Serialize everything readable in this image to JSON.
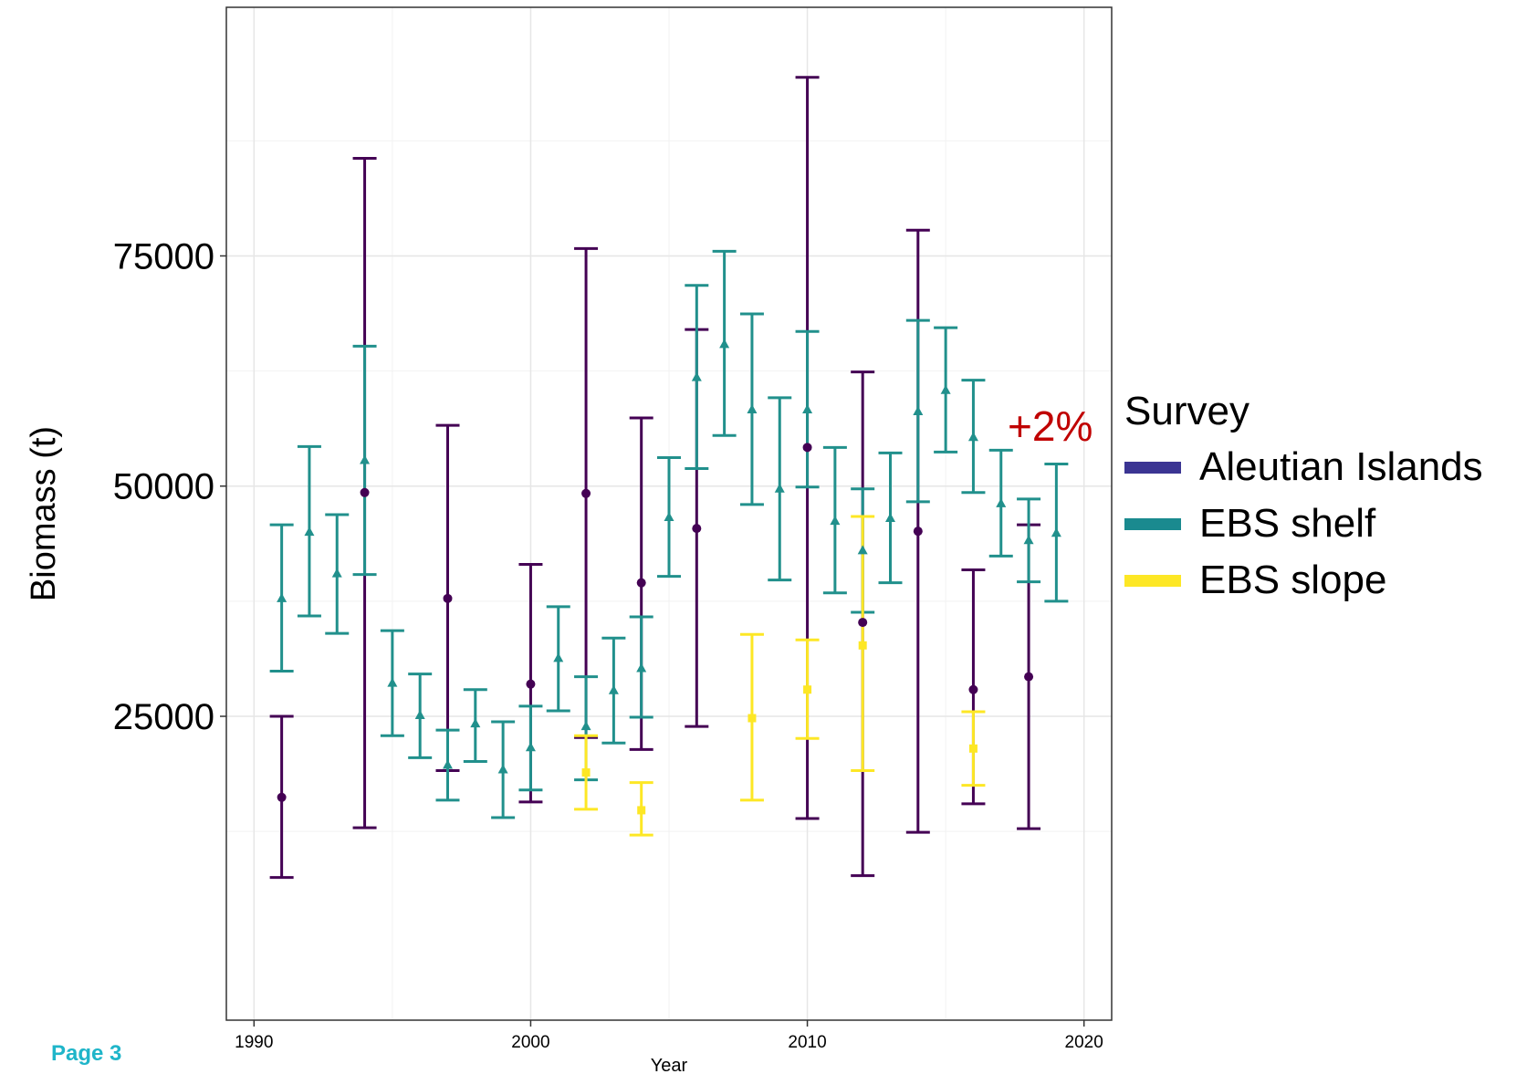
{
  "chart_data": {
    "type": "errorbar",
    "title": "",
    "xlabel": "Year",
    "ylabel": "Biomass (t)",
    "xlim": [
      1989,
      2021
    ],
    "ylim": [
      -8000,
      102000
    ],
    "x_ticks": [
      1990,
      2000,
      2010,
      2020
    ],
    "y_ticks": [
      25000,
      50000,
      75000
    ],
    "grid": true,
    "legend_position": "right",
    "legend_title": "Survey",
    "series": [
      {
        "name": "Aleutian Islands",
        "color": "#440154",
        "legend_color": "#3b3593",
        "marker": "circle",
        "points": [
          {
            "x": 1991,
            "y": 16200,
            "lo": 7500,
            "hi": 25000
          },
          {
            "x": 1994,
            "y": 49300,
            "lo": 12900,
            "hi": 85600
          },
          {
            "x": 1997,
            "y": 37800,
            "lo": 19100,
            "hi": 56600
          },
          {
            "x": 2000,
            "y": 28500,
            "lo": 15700,
            "hi": 41500
          },
          {
            "x": 2002,
            "y": 49200,
            "lo": 22700,
            "hi": 75800
          },
          {
            "x": 2004,
            "y": 39500,
            "lo": 21400,
            "hi": 57400
          },
          {
            "x": 2006,
            "y": 45400,
            "lo": 23900,
            "hi": 67000
          },
          {
            "x": 2010,
            "y": 54200,
            "lo": 13900,
            "hi": 94400
          },
          {
            "x": 2012,
            "y": 35200,
            "lo": 7700,
            "hi": 62400
          },
          {
            "x": 2014,
            "y": 45100,
            "lo": 12400,
            "hi": 77800
          },
          {
            "x": 2016,
            "y": 27900,
            "lo": 15500,
            "hi": 40900
          },
          {
            "x": 2018,
            "y": 29300,
            "lo": 12800,
            "hi": 45800
          }
        ]
      },
      {
        "name": "EBS shelf",
        "color": "#21908c",
        "legend_color": "#1a8a8f",
        "marker": "triangle",
        "points": [
          {
            "x": 1991,
            "y": 37800,
            "lo": 29900,
            "hi": 45800
          },
          {
            "x": 1992,
            "y": 45000,
            "lo": 35900,
            "hi": 54300
          },
          {
            "x": 1993,
            "y": 40500,
            "lo": 34000,
            "hi": 46900
          },
          {
            "x": 1994,
            "y": 52800,
            "lo": 40400,
            "hi": 65200
          },
          {
            "x": 1995,
            "y": 28600,
            "lo": 22900,
            "hi": 34300
          },
          {
            "x": 1996,
            "y": 25100,
            "lo": 20500,
            "hi": 29600
          },
          {
            "x": 1997,
            "y": 19700,
            "lo": 15900,
            "hi": 23500
          },
          {
            "x": 1998,
            "y": 24200,
            "lo": 20100,
            "hi": 27900
          },
          {
            "x": 1999,
            "y": 19200,
            "lo": 14000,
            "hi": 24400
          },
          {
            "x": 2000,
            "y": 21600,
            "lo": 17000,
            "hi": 26100
          },
          {
            "x": 2001,
            "y": 31300,
            "lo": 25600,
            "hi": 36900
          },
          {
            "x": 2002,
            "y": 23900,
            "lo": 18100,
            "hi": 29300
          },
          {
            "x": 2003,
            "y": 27800,
            "lo": 22100,
            "hi": 33500
          },
          {
            "x": 2004,
            "y": 30200,
            "lo": 24900,
            "hi": 35800
          },
          {
            "x": 2005,
            "y": 46600,
            "lo": 40200,
            "hi": 53100
          },
          {
            "x": 2006,
            "y": 61800,
            "lo": 51900,
            "hi": 71800
          },
          {
            "x": 2007,
            "y": 65400,
            "lo": 55500,
            "hi": 75500
          },
          {
            "x": 2008,
            "y": 58300,
            "lo": 48000,
            "hi": 68700
          },
          {
            "x": 2009,
            "y": 49700,
            "lo": 39800,
            "hi": 59600
          },
          {
            "x": 2010,
            "y": 58300,
            "lo": 49900,
            "hi": 66800
          },
          {
            "x": 2011,
            "y": 46200,
            "lo": 38400,
            "hi": 54200
          },
          {
            "x": 2012,
            "y": 43000,
            "lo": 36300,
            "hi": 49700
          },
          {
            "x": 2013,
            "y": 46500,
            "lo": 39500,
            "hi": 53600
          },
          {
            "x": 2014,
            "y": 58100,
            "lo": 48300,
            "hi": 68000
          },
          {
            "x": 2015,
            "y": 60400,
            "lo": 53700,
            "hi": 67200
          },
          {
            "x": 2016,
            "y": 55300,
            "lo": 49300,
            "hi": 61500
          },
          {
            "x": 2017,
            "y": 48100,
            "lo": 42400,
            "hi": 53900
          },
          {
            "x": 2018,
            "y": 44100,
            "lo": 39600,
            "hi": 48600
          },
          {
            "x": 2019,
            "y": 44900,
            "lo": 37500,
            "hi": 52400
          }
        ]
      },
      {
        "name": "EBS slope",
        "color": "#fde725",
        "legend_color": "#fde725",
        "marker": "square",
        "points": [
          {
            "x": 2002,
            "y": 18900,
            "lo": 14900,
            "hi": 22900
          },
          {
            "x": 2004,
            "y": 14800,
            "lo": 12100,
            "hi": 17800
          },
          {
            "x": 2008,
            "y": 24800,
            "lo": 15900,
            "hi": 33900
          },
          {
            "x": 2010,
            "y": 27900,
            "lo": 22600,
            "hi": 33300
          },
          {
            "x": 2012,
            "y": 32700,
            "lo": 19100,
            "hi": 46700
          },
          {
            "x": 2016,
            "y": 21500,
            "lo": 17500,
            "hi": 25500
          }
        ]
      }
    ]
  },
  "annotation": "+2%",
  "page_label": "Page 3"
}
